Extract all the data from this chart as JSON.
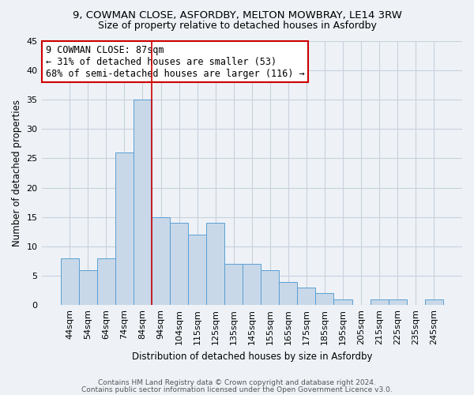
{
  "title1": "9, COWMAN CLOSE, ASFORDBY, MELTON MOWBRAY, LE14 3RW",
  "title2": "Size of property relative to detached houses in Asfordby",
  "xlabel": "Distribution of detached houses by size in Asfordby",
  "ylabel": "Number of detached properties",
  "footnote1": "Contains HM Land Registry data © Crown copyright and database right 2024.",
  "footnote2": "Contains public sector information licensed under the Open Government Licence v3.0.",
  "annotation_line1": "9 COWMAN CLOSE: 87sqm",
  "annotation_line2": "← 31% of detached houses are smaller (53)",
  "annotation_line3": "68% of semi-detached houses are larger (116) →",
  "categories": [
    "44sqm",
    "54sqm",
    "64sqm",
    "74sqm",
    "84sqm",
    "94sqm",
    "104sqm",
    "115sqm",
    "125sqm",
    "135sqm",
    "145sqm",
    "155sqm",
    "165sqm",
    "175sqm",
    "185sqm",
    "195sqm",
    "205sqm",
    "215sqm",
    "225sqm",
    "235sqm",
    "245sqm"
  ],
  "values": [
    8,
    6,
    8,
    26,
    35,
    15,
    14,
    12,
    14,
    7,
    7,
    6,
    4,
    3,
    2,
    1,
    0,
    1,
    1,
    0,
    1
  ],
  "bar_color": "#c8d8e8",
  "bar_edge_color": "#5a9fd4",
  "grid_color": "#c8d0dc",
  "background_color": "#eef2f7",
  "annotation_box_color": "#ffffff",
  "annotation_box_edge": "#cc0000",
  "red_line_color": "#cc0000",
  "red_line_x": 4.5,
  "ylim": [
    0,
    45
  ],
  "yticks": [
    0,
    5,
    10,
    15,
    20,
    25,
    30,
    35,
    40,
    45
  ],
  "title1_fontsize": 9.5,
  "title2_fontsize": 9,
  "annotation_fontsize": 8.5,
  "ylabel_fontsize": 8.5,
  "xlabel_fontsize": 8.5,
  "tick_fontsize": 8,
  "footnote_fontsize": 6.5
}
